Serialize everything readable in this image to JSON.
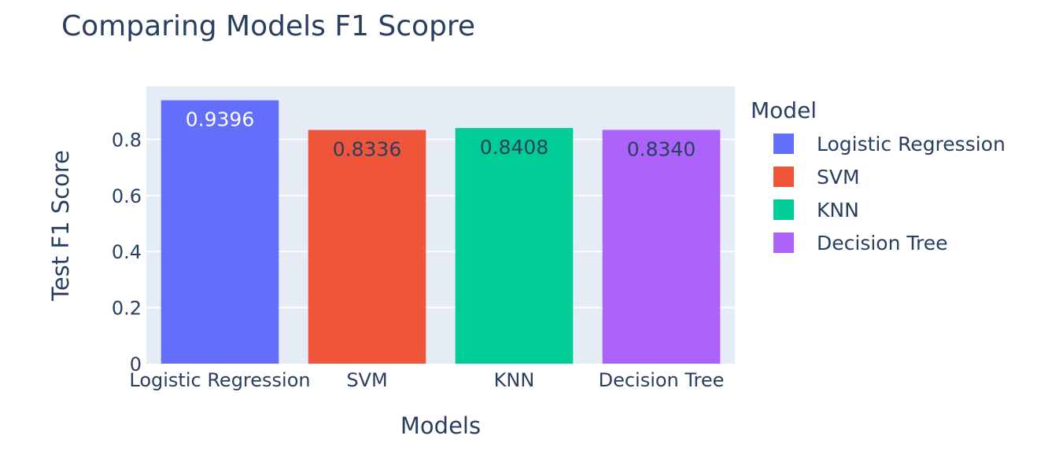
{
  "chart_data": {
    "type": "bar",
    "title": "Comparing Models F1 Scopre",
    "xlabel": "Models",
    "ylabel": "Test F1 Score",
    "categories": [
      "Logistic Regression",
      "SVM",
      "KNN",
      "Decision Tree"
    ],
    "values": [
      0.9396,
      0.8336,
      0.8408,
      0.834
    ],
    "data_labels": [
      "0.9396",
      "0.8336",
      "0.8408",
      "0.8340"
    ],
    "colors": [
      "#636efa",
      "#ef553b",
      "#00cc96",
      "#ab63fa"
    ],
    "ylim": [
      0,
      0.9891
    ],
    "yticks": [
      0,
      0.2,
      0.4,
      0.6,
      0.8
    ],
    "ytick_labels": [
      "0",
      "0.2",
      "0.4",
      "0.6",
      "0.8"
    ],
    "grid": true,
    "legend": {
      "title": "Model",
      "placement": "right",
      "entries": [
        "Logistic Regression",
        "SVM",
        "KNN",
        "Decision Tree"
      ]
    }
  }
}
